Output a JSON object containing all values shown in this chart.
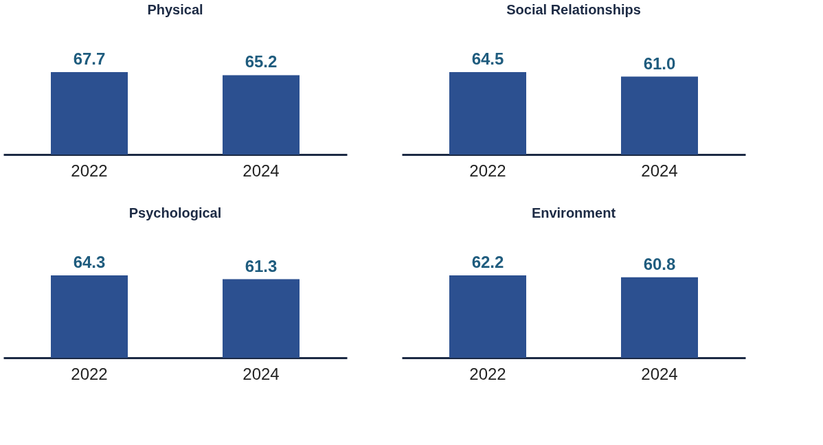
{
  "chart_data": [
    {
      "type": "bar",
      "title": "Physical",
      "categories": [
        "2022",
        "2024"
      ],
      "values": [
        67.7,
        65.2
      ],
      "value_labels": [
        "67.7",
        "65.2"
      ],
      "color": "#2c5090",
      "tick_labels": "x"
    },
    {
      "type": "bar",
      "title": "Social Relationships",
      "categories": [
        "2022",
        "2024"
      ],
      "values": [
        64.5,
        61.0
      ],
      "value_labels": [
        "64.5",
        "61.0"
      ],
      "color": "#2c5090",
      "tick_labels": "x"
    },
    {
      "type": "bar",
      "title": "Psychological",
      "categories": [
        "2022",
        "2024"
      ],
      "values": [
        64.3,
        61.3
      ],
      "value_labels": [
        "64.3",
        "61.3"
      ],
      "color": "#2c5090",
      "tick_labels": "x"
    },
    {
      "type": "bar",
      "title": "Environment",
      "categories": [
        "2022",
        "2024"
      ],
      "values": [
        62.2,
        60.8
      ],
      "value_labels": [
        "62.2",
        "60.8"
      ],
      "color": "#2c5090",
      "tick_labels": "x"
    }
  ]
}
